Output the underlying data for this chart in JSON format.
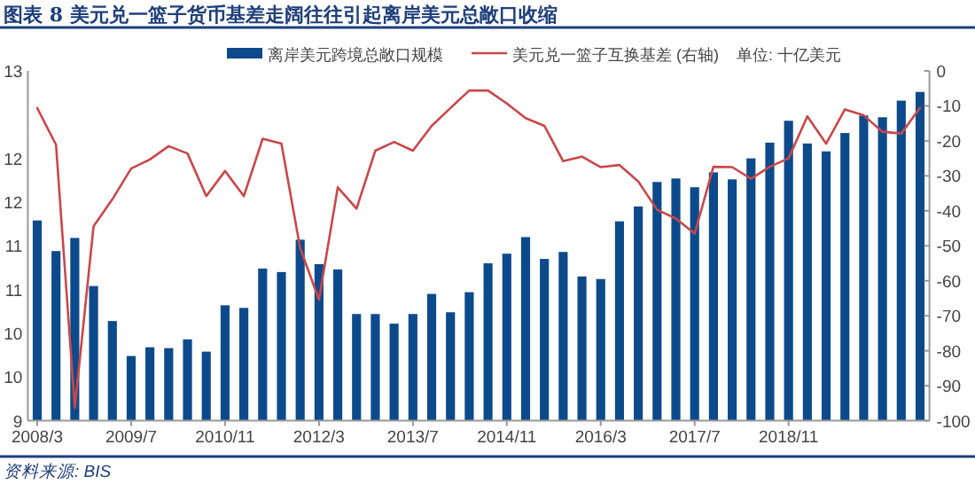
{
  "chart_data": {
    "type": "bar",
    "title": "图表 8   美元兑一篮子货币基差走阔往往引起离岸美元总敞口收缩",
    "categories": [
      "2008/3",
      null,
      null,
      null,
      null,
      "2009/7",
      null,
      null,
      null,
      null,
      "2010/11",
      null,
      null,
      null,
      null,
      "2012/3",
      null,
      null,
      null,
      null,
      "2013/7",
      null,
      null,
      null,
      null,
      "2014/11",
      null,
      null,
      null,
      null,
      "2016/3",
      null,
      null,
      null,
      null,
      "2017/7",
      null,
      null,
      null,
      null,
      "2018/11",
      null,
      null,
      null,
      null,
      null,
      null,
      null
    ],
    "series": [
      {
        "name": "离岸美元跨境总敞口规模",
        "color": "#0d4a8b",
        "values": [
          11.29,
          10.94,
          11.09,
          10.54,
          10.14,
          9.74,
          9.84,
          9.83,
          9.93,
          9.79,
          10.32,
          10.29,
          10.74,
          10.7,
          11.07,
          10.79,
          10.73,
          10.22,
          10.22,
          10.11,
          10.22,
          10.45,
          10.24,
          10.47,
          10.8,
          10.91,
          11.1,
          10.85,
          10.93,
          10.65,
          10.62,
          11.28,
          11.45,
          11.73,
          11.77,
          11.67,
          11.84,
          11.76,
          12.0,
          12.18,
          12.43,
          12.17,
          12.08,
          12.29,
          12.49,
          12.47,
          12.66,
          12.76
        ]
      },
      {
        "name": "美元兑一篮子互换基差 (右轴)",
        "type": "line",
        "axis": "y2",
        "color": "#c9474a",
        "values": [
          -10.6,
          -21.1,
          -96.3,
          -44.4,
          -36.7,
          -27.9,
          -25.3,
          -21.5,
          -23.6,
          -35.8,
          -28.6,
          -35.8,
          -19.4,
          -20.8,
          -50.7,
          -65.4,
          -33.3,
          -39.4,
          -22.8,
          -20.3,
          -22.8,
          -15.7,
          -10.6,
          -5.6,
          -5.6,
          -9.3,
          -13.5,
          -15.7,
          -25.8,
          -24.5,
          -27.5,
          -26.9,
          -31.6,
          -39.7,
          -42.2,
          -46.5,
          -27.4,
          -27.5,
          -30.8,
          -27.4,
          -25.0,
          -13.0,
          -20.8,
          -11.0,
          -12.7,
          -17.4,
          -17.9,
          -10.5
        ]
      }
    ],
    "ylim": [
      9,
      13
    ],
    "yticks": [
      9,
      {
        "value": 9.5,
        "label": "10"
      },
      10,
      {
        "value": 10.5,
        "label": "11"
      },
      11,
      {
        "value": 11.5,
        "label": "12"
      },
      12,
      13
    ],
    "y2lim": [
      -100,
      0
    ],
    "y2ticks": [
      -100,
      -90,
      -80,
      -70,
      -60,
      -50,
      -40,
      -30,
      -20,
      -10,
      0
    ],
    "legend": "top",
    "grid": false,
    "annotations": [
      "单位: 十亿美元",
      "资料来源: BIS"
    ]
  }
}
